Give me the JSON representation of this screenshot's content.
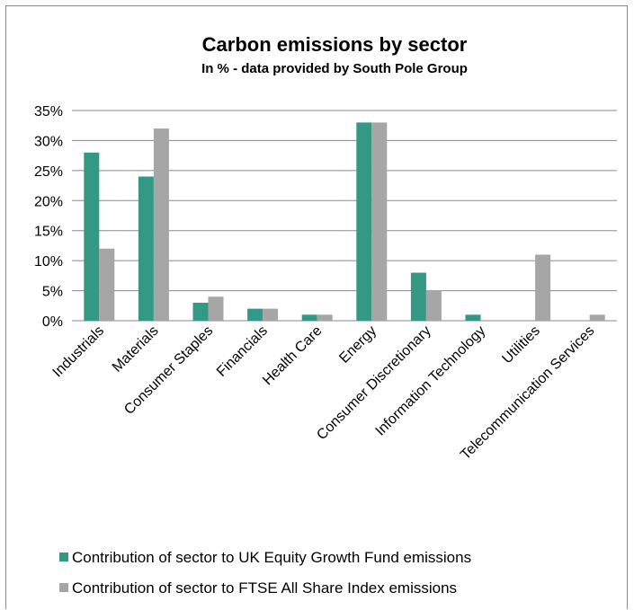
{
  "chart_data": {
    "type": "bar",
    "title": "Carbon emissions by sector",
    "subtitle": "In % - data provided by South Pole Group",
    "categories": [
      "Industrials",
      "Materials",
      "Consumer Staples",
      "Financials",
      "Health Care",
      "Energy",
      "Consumer Discretionary",
      "Information Technology",
      "Utilities",
      "Telecommunication Services"
    ],
    "series": [
      {
        "name": "Contribution of sector to UK Equity Growth Fund emissions",
        "color": "#339985",
        "values": [
          28,
          24,
          3,
          2,
          1,
          33,
          8,
          1,
          0,
          0
        ]
      },
      {
        "name": "Contribution of sector to FTSE All Share Index emissions",
        "color": "#a6a6a6",
        "values": [
          12,
          32,
          4,
          2,
          1,
          33,
          5,
          0,
          11,
          1
        ]
      }
    ],
    "ylim": [
      0,
      35
    ],
    "yticks": [
      0,
      5,
      10,
      15,
      20,
      25,
      30,
      35
    ],
    "ytick_labels": [
      "0%",
      "5%",
      "10%",
      "15%",
      "20%",
      "25%",
      "30%",
      "35%"
    ],
    "xlabel": "",
    "ylabel": "",
    "grid": true,
    "legend_position": "bottom"
  }
}
